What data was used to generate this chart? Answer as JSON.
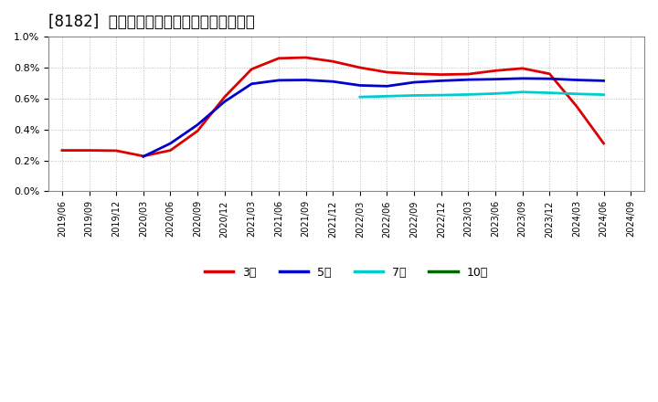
{
  "title": "[8182]  経常利益マージンの標準偏差の推移",
  "title_fontsize": 12,
  "background_color": "#ffffff",
  "plot_bg_color": "#ffffff",
  "grid_color": "#aaaaaa",
  "x_labels": [
    "2019/06",
    "2019/09",
    "2019/12",
    "2020/03",
    "2020/06",
    "2020/09",
    "2020/12",
    "2021/03",
    "2021/06",
    "2021/09",
    "2021/12",
    "2022/03",
    "2022/06",
    "2022/09",
    "2022/12",
    "2023/03",
    "2023/06",
    "2023/09",
    "2023/12",
    "2024/03",
    "2024/06",
    "2024/09"
  ],
  "series": {
    "3年": {
      "color": "#dd0000",
      "linewidth": 2.0,
      "data_x": [
        0,
        1,
        2,
        3,
        4,
        5,
        6,
        7,
        8,
        9,
        10,
        11,
        12,
        13,
        14,
        15,
        16,
        17,
        18,
        19,
        20
      ],
      "data_y": [
        0.00265,
        0.00265,
        0.00263,
        0.00228,
        0.00265,
        0.0039,
        0.0061,
        0.0079,
        0.0086,
        0.00865,
        0.0084,
        0.008,
        0.0077,
        0.0076,
        0.00755,
        0.00758,
        0.0078,
        0.00795,
        0.0076,
        0.0055,
        0.0031
      ]
    },
    "5年": {
      "color": "#0000cc",
      "linewidth": 2.0,
      "data_x": [
        3,
        4,
        5,
        6,
        7,
        8,
        9,
        10,
        11,
        12,
        13,
        14,
        15,
        16,
        17,
        18,
        19,
        20
      ],
      "data_y": [
        0.00225,
        0.0031,
        0.0043,
        0.0058,
        0.00695,
        0.00718,
        0.0072,
        0.0071,
        0.00685,
        0.0068,
        0.00705,
        0.00715,
        0.00722,
        0.00725,
        0.0073,
        0.00728,
        0.0072,
        0.00715
      ]
    },
    "7年": {
      "color": "#00cccc",
      "linewidth": 2.0,
      "data_x": [
        11,
        12,
        13,
        14,
        15,
        16,
        17,
        18,
        19,
        20
      ],
      "data_y": [
        0.0061,
        0.00615,
        0.0062,
        0.00622,
        0.00626,
        0.00632,
        0.00642,
        0.00637,
        0.0063,
        0.00625
      ]
    },
    "10年": {
      "color": "#006600",
      "linewidth": 2.0,
      "data_x": [],
      "data_y": []
    }
  },
  "legend_labels": [
    "3年",
    "5年",
    "7年",
    "10年"
  ],
  "legend_colors": [
    "#dd0000",
    "#0000cc",
    "#00cccc",
    "#006600"
  ]
}
